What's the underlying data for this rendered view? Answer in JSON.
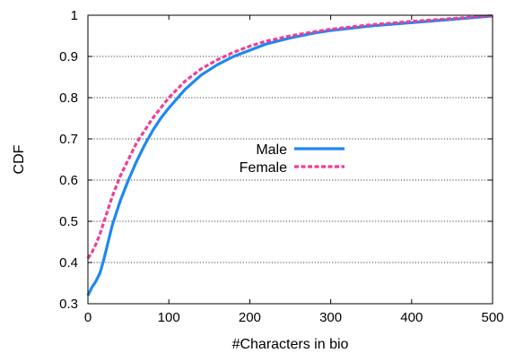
{
  "chart_data": {
    "type": "line",
    "title": "",
    "xlabel": "#Characters in bio",
    "ylabel": "CDF",
    "xlim": [
      0,
      500
    ],
    "ylim": [
      0.3,
      1.0
    ],
    "x_ticks": [
      "0",
      "100",
      "200",
      "300",
      "400",
      "500"
    ],
    "y_ticks": [
      "0.3",
      "0.4",
      "0.5",
      "0.6",
      "0.7",
      "0.8",
      "0.9",
      "1"
    ],
    "grid": "horizontal dotted",
    "legend_position": "center",
    "series": [
      {
        "name": "Male",
        "color": "#1e88f0",
        "style": "solid",
        "points": [
          [
            0,
            0.32
          ],
          [
            5,
            0.34
          ],
          [
            10,
            0.355
          ],
          [
            15,
            0.375
          ],
          [
            20,
            0.41
          ],
          [
            25,
            0.45
          ],
          [
            30,
            0.49
          ],
          [
            40,
            0.55
          ],
          [
            50,
            0.6
          ],
          [
            60,
            0.645
          ],
          [
            70,
            0.685
          ],
          [
            80,
            0.72
          ],
          [
            90,
            0.75
          ],
          [
            100,
            0.775
          ],
          [
            120,
            0.82
          ],
          [
            140,
            0.855
          ],
          [
            160,
            0.88
          ],
          [
            180,
            0.9
          ],
          [
            200,
            0.915
          ],
          [
            220,
            0.93
          ],
          [
            250,
            0.945
          ],
          [
            280,
            0.957
          ],
          [
            300,
            0.963
          ],
          [
            350,
            0.974
          ],
          [
            400,
            0.982
          ],
          [
            450,
            0.99
          ],
          [
            500,
            0.998
          ]
        ]
      },
      {
        "name": "Female",
        "color": "#ef3f95",
        "style": "dashed",
        "points": [
          [
            0,
            0.41
          ],
          [
            5,
            0.425
          ],
          [
            10,
            0.445
          ],
          [
            15,
            0.47
          ],
          [
            20,
            0.5
          ],
          [
            25,
            0.53
          ],
          [
            30,
            0.56
          ],
          [
            40,
            0.61
          ],
          [
            50,
            0.65
          ],
          [
            60,
            0.69
          ],
          [
            70,
            0.72
          ],
          [
            80,
            0.75
          ],
          [
            90,
            0.775
          ],
          [
            100,
            0.8
          ],
          [
            120,
            0.84
          ],
          [
            140,
            0.87
          ],
          [
            160,
            0.892
          ],
          [
            180,
            0.91
          ],
          [
            200,
            0.925
          ],
          [
            220,
            0.937
          ],
          [
            250,
            0.95
          ],
          [
            280,
            0.96
          ],
          [
            300,
            0.966
          ],
          [
            350,
            0.977
          ],
          [
            400,
            0.985
          ],
          [
            450,
            0.992
          ],
          [
            500,
            0.999
          ]
        ]
      }
    ]
  }
}
